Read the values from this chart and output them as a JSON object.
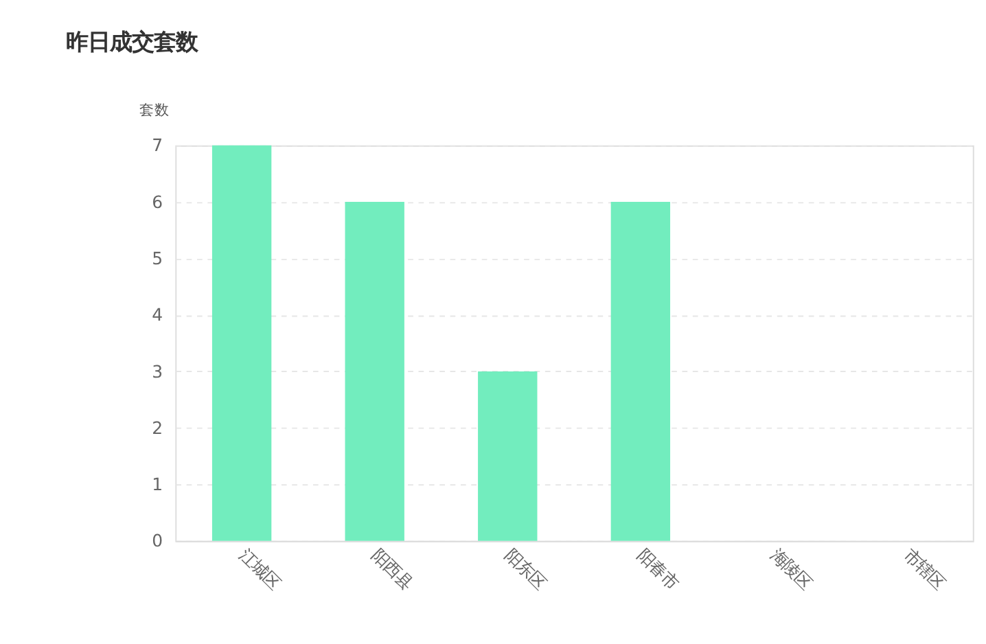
{
  "chart_data": {
    "type": "bar",
    "title": "昨日成交套数",
    "ylabel": "套数",
    "categories": [
      "江城区",
      "阳西县",
      "阳东区",
      "阳春市",
      "海陵区",
      "市辖区"
    ],
    "values": [
      7,
      6,
      3,
      6,
      0,
      0
    ],
    "color": "#72edbe",
    "ylim": [
      0,
      7
    ],
    "yticks": [
      0,
      1,
      2,
      3,
      4,
      5,
      6,
      7
    ],
    "grid": "y"
  }
}
